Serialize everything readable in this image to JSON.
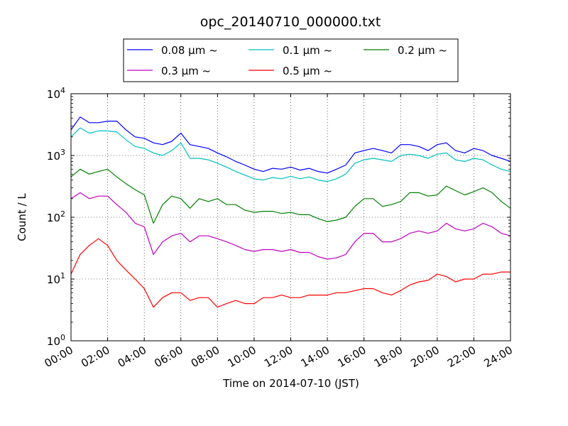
{
  "chart_data": {
    "type": "line",
    "title": "opc_20140710_000000.txt",
    "xlabel": "Time on 2014-07-10 (JST)",
    "ylabel": "Count / L",
    "y_scale": "log",
    "ylim": [
      1,
      10000
    ],
    "xlim": [
      "00:00",
      "24:00"
    ],
    "grid": true,
    "legend_position": "top-center",
    "legend_columns": 3,
    "x_ticks": [
      "00:00",
      "02:00",
      "04:00",
      "06:00",
      "08:00",
      "10:00",
      "12:00",
      "14:00",
      "16:00",
      "18:00",
      "20:00",
      "22:00",
      "24:00"
    ],
    "y_ticks": [
      {
        "value": 1,
        "base": "10",
        "exp": "0"
      },
      {
        "value": 10,
        "base": "10",
        "exp": "1"
      },
      {
        "value": 100,
        "base": "10",
        "exp": "2"
      },
      {
        "value": 1000,
        "base": "10",
        "exp": "3"
      },
      {
        "value": 10000,
        "base": "10",
        "exp": "4"
      }
    ],
    "x": [
      "00:00",
      "00:30",
      "01:00",
      "01:30",
      "02:00",
      "02:30",
      "03:00",
      "03:30",
      "04:00",
      "04:30",
      "05:00",
      "05:30",
      "06:00",
      "06:30",
      "07:00",
      "07:30",
      "08:00",
      "08:30",
      "09:00",
      "09:30",
      "10:00",
      "10:30",
      "11:00",
      "11:30",
      "12:00",
      "12:30",
      "13:00",
      "13:30",
      "14:00",
      "14:30",
      "15:00",
      "15:30",
      "16:00",
      "16:30",
      "17:00",
      "17:30",
      "18:00",
      "18:30",
      "19:00",
      "19:30",
      "20:00",
      "20:30",
      "21:00",
      "21:30",
      "22:00",
      "22:30",
      "23:00",
      "23:30",
      "24:00"
    ],
    "series": [
      {
        "name": "0.08 μm ~",
        "prefix": "0.08 ",
        "color": "#0000ff",
        "values": [
          2600,
          4200,
          3400,
          3400,
          3600,
          3600,
          2600,
          2000,
          1900,
          1600,
          1500,
          1700,
          2300,
          1500,
          1400,
          1300,
          1100,
          950,
          800,
          700,
          600,
          550,
          620,
          600,
          650,
          580,
          620,
          550,
          520,
          600,
          700,
          1100,
          1200,
          1300,
          1200,
          1100,
          1500,
          1500,
          1400,
          1200,
          1500,
          1600,
          1200,
          1100,
          1300,
          1200,
          1000,
          900,
          800
        ]
      },
      {
        "name": "0.1 μm ~",
        "prefix": "0.1 ",
        "color": "#00bfbf",
        "values": [
          2000,
          2800,
          2300,
          2500,
          2500,
          2400,
          1800,
          1400,
          1300,
          1100,
          1000,
          1200,
          1600,
          900,
          900,
          850,
          750,
          650,
          550,
          480,
          420,
          400,
          440,
          420,
          460,
          420,
          450,
          400,
          380,
          420,
          500,
          750,
          850,
          900,
          850,
          800,
          1000,
          1050,
          1000,
          900,
          1050,
          1100,
          850,
          800,
          900,
          850,
          700,
          600,
          550
        ]
      },
      {
        "name": "0.2 μm ~",
        "prefix": "0.2 ",
        "color": "#008000",
        "values": [
          450,
          600,
          500,
          550,
          600,
          450,
          350,
          280,
          230,
          80,
          160,
          220,
          200,
          140,
          200,
          180,
          200,
          160,
          160,
          130,
          120,
          125,
          125,
          115,
          120,
          110,
          110,
          95,
          85,
          90,
          100,
          150,
          200,
          200,
          150,
          160,
          180,
          250,
          250,
          220,
          230,
          320,
          270,
          230,
          260,
          300,
          250,
          180,
          140
        ]
      },
      {
        "name": "0.3 μm ~",
        "prefix": "0.3 ",
        "color": "#bf00bf",
        "values": [
          200,
          250,
          200,
          220,
          220,
          160,
          120,
          80,
          70,
          25,
          40,
          50,
          55,
          40,
          50,
          50,
          45,
          40,
          35,
          30,
          28,
          30,
          30,
          28,
          30,
          27,
          27,
          23,
          21,
          22,
          25,
          40,
          55,
          55,
          40,
          40,
          45,
          55,
          60,
          55,
          60,
          80,
          65,
          60,
          65,
          80,
          70,
          55,
          50
        ]
      },
      {
        "name": "0.5 μm ~",
        "prefix": "0.5 ",
        "color": "#ff0000",
        "values": [
          12,
          25,
          35,
          45,
          35,
          20,
          14,
          10,
          7,
          3.5,
          5,
          6,
          6,
          4.5,
          5,
          5,
          3.5,
          4,
          4.5,
          4,
          4,
          5,
          5,
          5.5,
          5,
          5,
          5.5,
          5.5,
          5.5,
          6,
          6,
          6.5,
          7,
          7,
          6,
          5.5,
          6.5,
          8,
          9,
          9.5,
          12,
          11,
          9,
          10,
          10,
          12,
          12,
          13,
          13
        ]
      }
    ]
  }
}
